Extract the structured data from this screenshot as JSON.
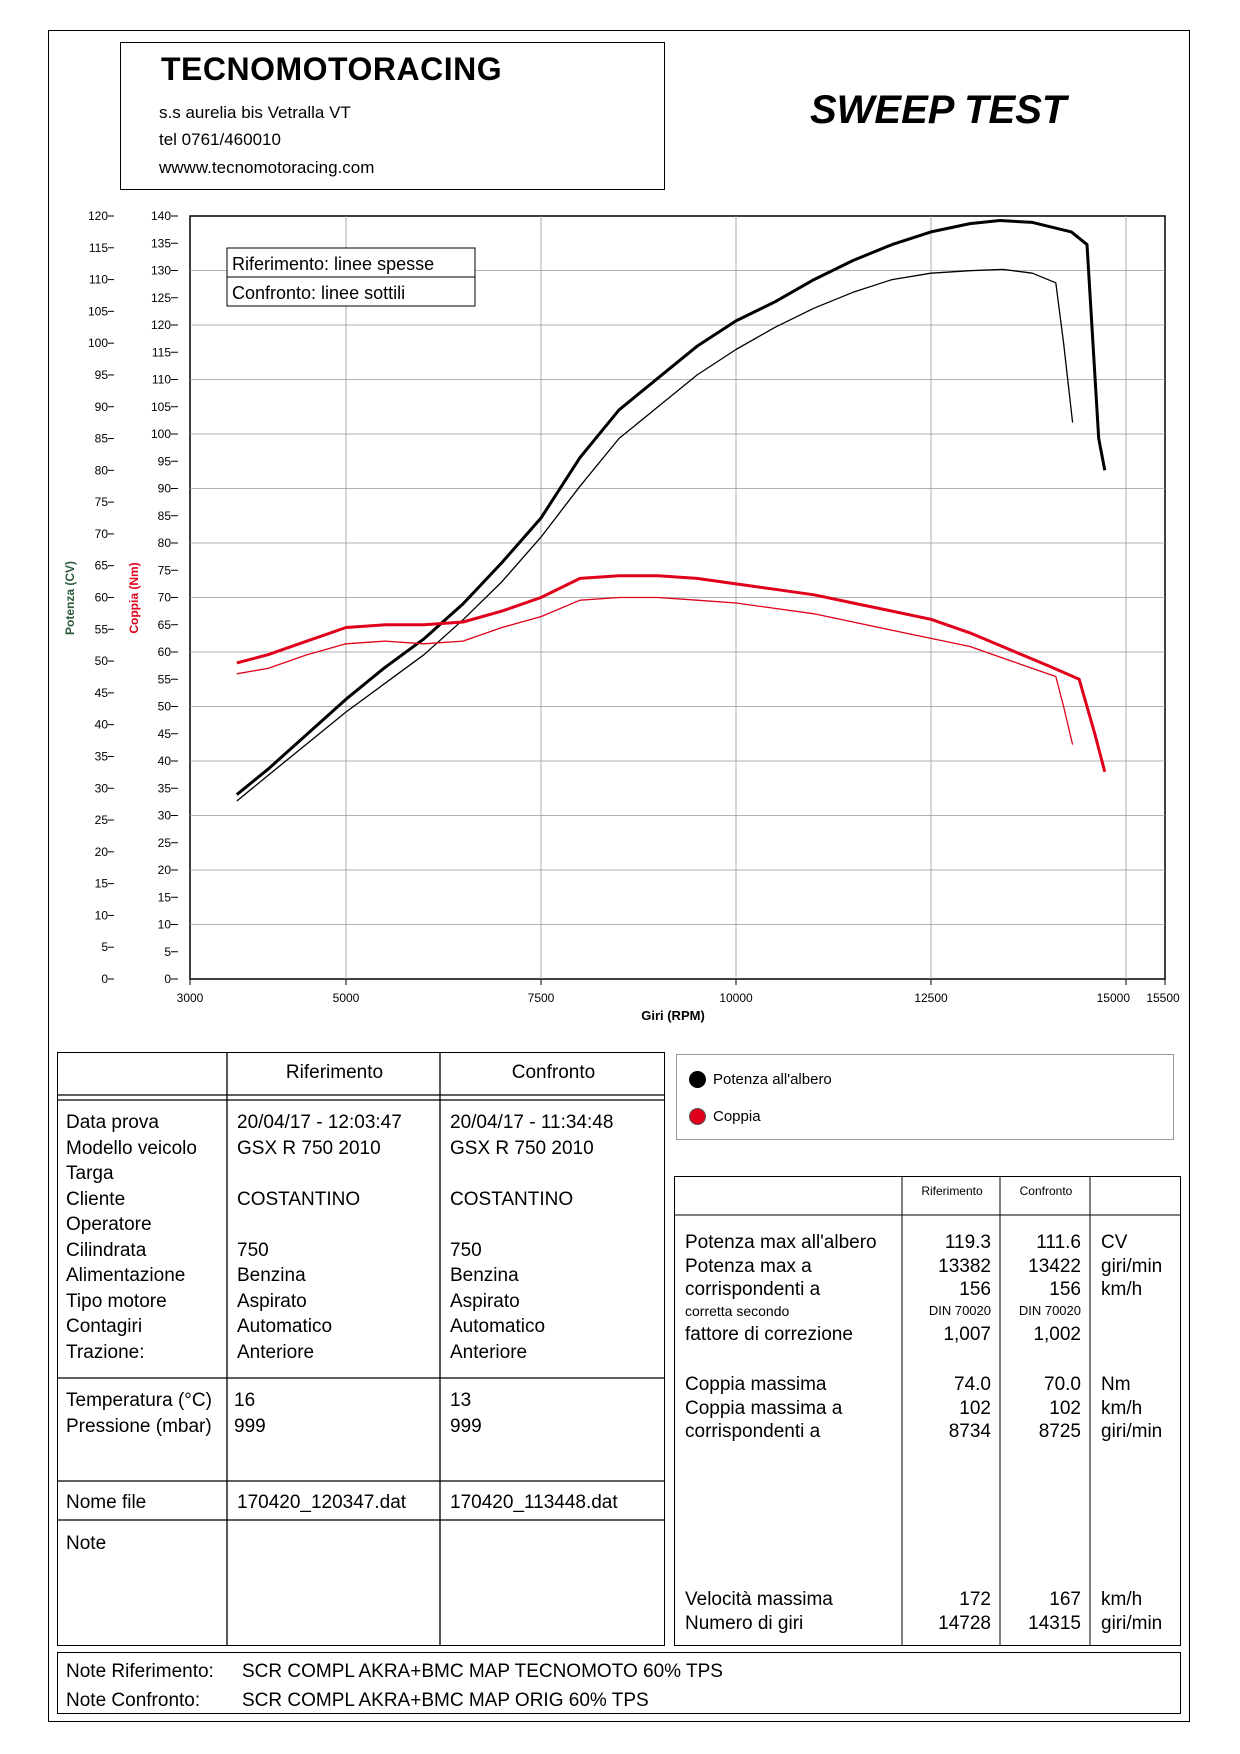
{
  "header": {
    "company": "TECNOMOTORACING",
    "address": "s.s aurelia bis  Vetralla  VT",
    "phone": "tel 0761/460010",
    "website": "wwww.tecnomotoracing.com",
    "report_title": "SWEEP TEST"
  },
  "chart_data": {
    "type": "line",
    "xlabel": "Giri (RPM)",
    "ylabel_power": "Potenza (CV)",
    "ylabel_torque": "Coppia (Nm)",
    "x_ticks": [
      3000,
      5000,
      7500,
      10000,
      12500,
      15000,
      15500
    ],
    "xlim": [
      3000,
      15500
    ],
    "power_axis": {
      "ylim": [
        0,
        120
      ],
      "ticks": [
        0,
        5,
        10,
        15,
        20,
        25,
        30,
        35,
        40,
        45,
        50,
        55,
        60,
        65,
        70,
        75,
        80,
        85,
        90,
        95,
        100,
        105,
        110,
        115,
        120
      ]
    },
    "torque_axis": {
      "ylim": [
        0,
        140
      ],
      "ticks": [
        0,
        5,
        10,
        15,
        20,
        25,
        30,
        35,
        40,
        45,
        50,
        55,
        60,
        65,
        70,
        75,
        80,
        85,
        90,
        95,
        100,
        105,
        110,
        115,
        120,
        125,
        130,
        135,
        140
      ]
    },
    "grid": true,
    "legend_note": [
      "Riferimento: linee spesse",
      "Confronto: linee sottili"
    ],
    "series": [
      {
        "name": "Potenza all'albero",
        "axis": "power",
        "variant": "Riferimento",
        "color": "#000000",
        "weight": "thick",
        "x": [
          3600,
          4000,
          4500,
          5000,
          5500,
          6000,
          6500,
          7000,
          7500,
          8000,
          8500,
          9000,
          9500,
          10000,
          10500,
          11000,
          11500,
          12000,
          12500,
          13000,
          13382,
          13800,
          14300,
          14500,
          14650,
          14728
        ],
        "y": [
          29,
          33,
          38.5,
          44,
          49,
          53.5,
          59,
          65.5,
          72.5,
          82,
          89.5,
          94.5,
          99.5,
          103.5,
          106.5,
          110,
          113,
          115.5,
          117.5,
          118.8,
          119.3,
          119,
          117.5,
          115.5,
          85,
          80
        ]
      },
      {
        "name": "Potenza all'albero",
        "axis": "power",
        "variant": "Confronto",
        "color": "#000000",
        "weight": "thin",
        "x": [
          3600,
          4000,
          4500,
          5000,
          5500,
          6000,
          6500,
          7000,
          7500,
          8000,
          8500,
          9000,
          9500,
          10000,
          10500,
          11000,
          11500,
          12000,
          12500,
          13000,
          13422,
          13800,
          14100,
          14200,
          14315
        ],
        "y": [
          28,
          32,
          37,
          42,
          46.5,
          51,
          56.5,
          62.5,
          69.5,
          77.5,
          85,
          90,
          95,
          99,
          102.5,
          105.5,
          108,
          110,
          111,
          111.4,
          111.6,
          111,
          109.5,
          100,
          87.5
        ]
      },
      {
        "name": "Coppia",
        "axis": "torque",
        "variant": "Riferimento",
        "color": "#e0001b",
        "weight": "thick",
        "x": [
          3600,
          4000,
          4500,
          5000,
          5500,
          6000,
          6500,
          7000,
          7500,
          8000,
          8500,
          8734,
          9000,
          9500,
          10000,
          10500,
          11000,
          11500,
          12000,
          12500,
          13000,
          13500,
          14000,
          14400,
          14600,
          14728
        ],
        "y": [
          58,
          59.5,
          62,
          64.5,
          65,
          65,
          65.5,
          67.5,
          70,
          73.5,
          74,
          74,
          74,
          73.5,
          72.5,
          71.5,
          70.5,
          69,
          67.5,
          66,
          63.5,
          60.5,
          57.5,
          55,
          45,
          38
        ]
      },
      {
        "name": "Coppia",
        "axis": "torque",
        "variant": "Confronto",
        "color": "#e0001b",
        "weight": "thin",
        "x": [
          3600,
          4000,
          4500,
          5000,
          5500,
          6000,
          6500,
          7000,
          7500,
          8000,
          8500,
          8725,
          9000,
          9500,
          10000,
          10500,
          11000,
          11500,
          12000,
          12500,
          13000,
          13500,
          13900,
          14100,
          14200,
          14315
        ],
        "y": [
          56,
          57,
          59.5,
          61.5,
          62,
          61.5,
          62,
          64.5,
          66.5,
          69.5,
          70,
          70,
          70,
          69.5,
          69,
          68,
          67,
          65.5,
          64,
          62.5,
          61,
          58.5,
          56.5,
          55.5,
          50,
          43
        ]
      }
    ]
  },
  "info_table": {
    "col_ref": "Riferimento",
    "col_cmp": "Confronto",
    "labels_block1": [
      "Data prova",
      "Modello veicolo",
      "Targa",
      "Cliente",
      "Operatore",
      "Cilindrata",
      "Alimentazione",
      "Tipo motore",
      "Contagiri",
      "Trazione:"
    ],
    "ref_block1": [
      "20/04/17 - 12:03:47",
      "GSX R 750  2010",
      "",
      "COSTANTINO",
      "",
      "750",
      "Benzina",
      "Aspirato",
      "Automatico",
      "Anteriore"
    ],
    "cmp_block1": [
      "20/04/17 - 11:34:48",
      "GSX R 750  2010",
      "",
      "COSTANTINO",
      "",
      "750",
      "Benzina",
      "Aspirato",
      "Automatico",
      "Anteriore"
    ],
    "labels_block2": [
      "Temperatura (°C)",
      "Pressione (mbar)"
    ],
    "ref_block2": [
      "16",
      "999"
    ],
    "cmp_block2": [
      "13",
      "999"
    ],
    "file_label": "Nome file",
    "ref_file": "170420_120347.dat",
    "cmp_file": "170420_113448.dat",
    "note_label": "Note"
  },
  "legend": {
    "power": "Potenza all'albero",
    "torque": "Coppia",
    "power_color": "#000000",
    "torque_color": "#e0001b"
  },
  "stats": {
    "col_ref": "Riferimento",
    "col_cmp": "Confronto",
    "rows1": [
      {
        "label": "Potenza max all'albero",
        "ref": "119.3",
        "cmp": "111.6",
        "unit": "CV"
      },
      {
        "label": "Potenza max a",
        "ref": "13382",
        "cmp": "13422",
        "unit": "giri/min"
      },
      {
        "label": "corrispondenti a",
        "ref": "156",
        "cmp": "156",
        "unit": "km/h"
      },
      {
        "label": "corretta secondo",
        "ref": "DIN 70020",
        "cmp": "DIN 70020",
        "unit": ""
      },
      {
        "label": "fattore di correzione",
        "ref": "1,007",
        "cmp": "1,002",
        "unit": ""
      }
    ],
    "rows2": [
      {
        "label": "Coppia massima",
        "ref": "74.0",
        "cmp": "70.0",
        "unit": "Nm"
      },
      {
        "label": "Coppia massima a",
        "ref": "102",
        "cmp": "102",
        "unit": "km/h"
      },
      {
        "label": "corrispondenti a",
        "ref": "8734",
        "cmp": "8725",
        "unit": "giri/min"
      }
    ],
    "rows3": [
      {
        "label": "Velocità massima",
        "ref": "172",
        "cmp": "167",
        "unit": "km/h"
      },
      {
        "label": "Numero di giri",
        "ref": "14728",
        "cmp": "14315",
        "unit": "giri/min"
      }
    ]
  },
  "notes": {
    "ref_label": "Note Riferimento:",
    "ref_text": "SCR COMPL AKRA+BMC MAP TECNOMOTO 60% TPS",
    "cmp_label": "Note Confronto:",
    "cmp_text": "SCR COMPL AKRA+BMC MAP ORIG 60% TPS"
  }
}
